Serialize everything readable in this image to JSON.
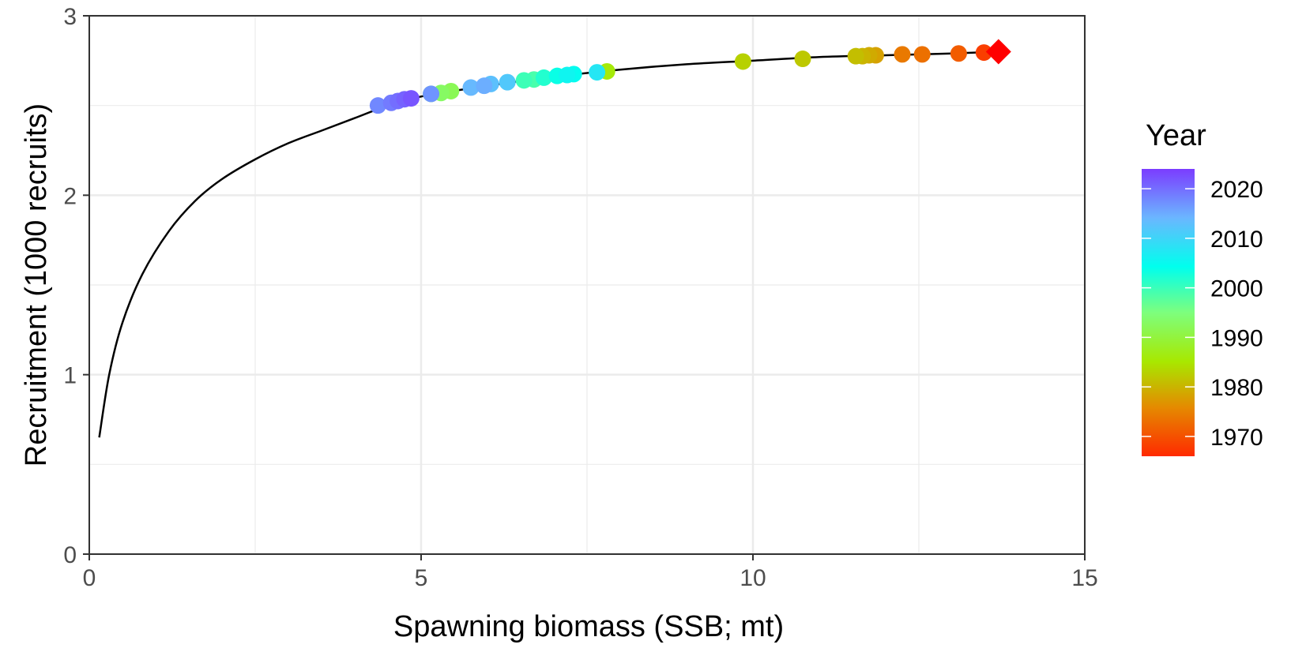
{
  "chart_data": {
    "type": "scatter",
    "xlabel": "Spawning biomass (SSB; mt)",
    "ylabel": "Recruitment (1000 recruits)",
    "xlim": [
      0,
      15
    ],
    "ylim": [
      0,
      3
    ],
    "xticks": [
      0,
      5,
      10,
      15
    ],
    "yticks": [
      0,
      1,
      2,
      3
    ],
    "grid": true,
    "curve": {
      "description_only": false,
      "x_range": [
        0.15,
        13.7
      ],
      "points": [
        [
          0.15,
          0.65
        ],
        [
          0.3,
          1.0
        ],
        [
          0.5,
          1.29
        ],
        [
          0.8,
          1.56
        ],
        [
          1.2,
          1.8
        ],
        [
          1.6,
          1.97
        ],
        [
          2.0,
          2.09
        ],
        [
          2.5,
          2.2
        ],
        [
          3.0,
          2.29
        ],
        [
          3.5,
          2.36
        ],
        [
          4.0,
          2.43
        ],
        [
          4.5,
          2.5
        ],
        [
          5.0,
          2.55
        ],
        [
          6.0,
          2.61
        ],
        [
          7.0,
          2.66
        ],
        [
          8.0,
          2.7
        ],
        [
          9.0,
          2.73
        ],
        [
          10.0,
          2.75
        ],
        [
          11.0,
          2.77
        ],
        [
          12.0,
          2.78
        ],
        [
          13.0,
          2.79
        ],
        [
          13.7,
          2.8
        ]
      ],
      "color": "#000000"
    },
    "series": [
      {
        "points": [
          {
            "x": 13.48,
            "y": 2.795,
            "year": 1968
          },
          {
            "x": 13.1,
            "y": 2.79,
            "year": 1971
          },
          {
            "x": 12.55,
            "y": 2.785,
            "year": 1973
          },
          {
            "x": 12.25,
            "y": 2.785,
            "year": 1974
          },
          {
            "x": 11.85,
            "y": 2.78,
            "year": 1978
          },
          {
            "x": 11.75,
            "y": 2.78,
            "year": 1979
          },
          {
            "x": 11.65,
            "y": 2.775,
            "year": 1980
          },
          {
            "x": 11.55,
            "y": 2.775,
            "year": 1981
          },
          {
            "x": 10.75,
            "y": 2.76,
            "year": 1982
          },
          {
            "x": 9.85,
            "y": 2.745,
            "year": 1983
          },
          {
            "x": 7.8,
            "y": 2.69,
            "year": 1986
          },
          {
            "x": 5.45,
            "y": 2.58,
            "year": 1992
          },
          {
            "x": 5.3,
            "y": 2.57,
            "year": 1993
          },
          {
            "x": 5.15,
            "y": 2.565,
            "year": 1994
          },
          {
            "x": 6.7,
            "y": 2.645,
            "year": 1999
          },
          {
            "x": 6.55,
            "y": 2.64,
            "year": 2000
          },
          {
            "x": 6.85,
            "y": 2.655,
            "year": 2002
          },
          {
            "x": 7.05,
            "y": 2.665,
            "year": 2004
          },
          {
            "x": 7.3,
            "y": 2.675,
            "year": 2005
          },
          {
            "x": 7.65,
            "y": 2.685,
            "year": 2008
          },
          {
            "x": 7.2,
            "y": 2.67,
            "year": 2006
          },
          {
            "x": 6.3,
            "y": 2.63,
            "year": 2012
          },
          {
            "x": 6.05,
            "y": 2.62,
            "year": 2013
          },
          {
            "x": 5.75,
            "y": 2.6,
            "year": 2014
          },
          {
            "x": 5.95,
            "y": 2.61,
            "year": 2015
          },
          {
            "x": 5.15,
            "y": 2.565,
            "year": 2017
          },
          {
            "x": 4.35,
            "y": 2.5,
            "year": 2018
          },
          {
            "x": 4.55,
            "y": 2.515,
            "year": 2019
          },
          {
            "x": 4.65,
            "y": 2.525,
            "year": 2020
          },
          {
            "x": 4.75,
            "y": 2.535,
            "year": 2021
          },
          {
            "x": 4.85,
            "y": 2.54,
            "year": 2022
          }
        ]
      }
    ],
    "highlight": {
      "x": 13.7,
      "y": 2.8,
      "shape": "diamond",
      "color": "#ff0000"
    },
    "legend": {
      "title": "Year",
      "placement": "right",
      "ticks": [
        1970,
        1980,
        1990,
        2000,
        2010,
        2020
      ],
      "range": [
        1966,
        2024
      ],
      "colors": [
        "#ff2a00",
        "#e58a00",
        "#a8e800",
        "#7dff7d",
        "#00ffee",
        "#6bb6ff",
        "#7b3cff"
      ]
    }
  }
}
